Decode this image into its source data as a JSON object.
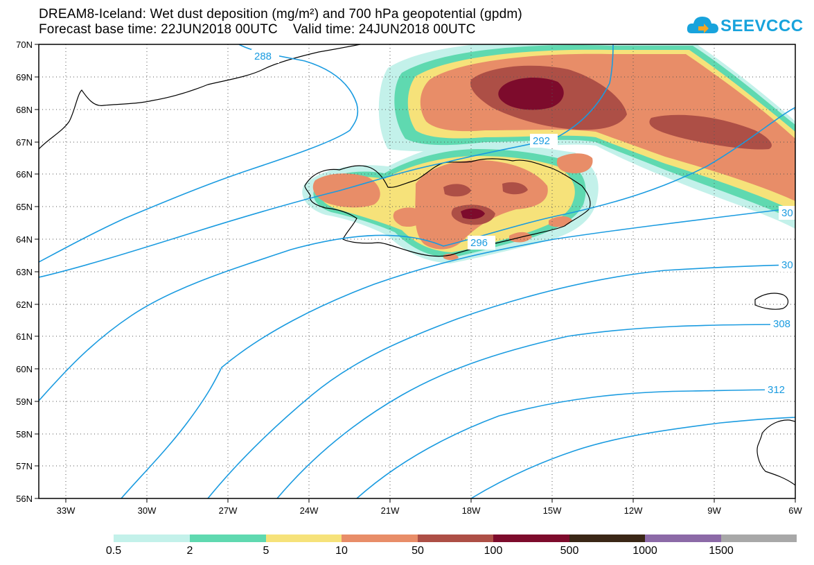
{
  "title": {
    "line1": "DREAM8-Iceland: Wet dust deposition (mg/m²) and 700 hPa geopotential (gpdm)",
    "line2": "Forecast base time: 22JUN2018 00UTC    Valid time: 24JUN2018 00UTC"
  },
  "logo": {
    "text": "SEEVCCC",
    "icon": "cloud-icon",
    "color": "#18a3dc"
  },
  "map": {
    "lon_range": [
      -34,
      -6
    ],
    "lat_range": [
      56,
      70
    ],
    "lat_labels": [
      "70N",
      "69N",
      "68N",
      "67N",
      "66N",
      "65N",
      "64N",
      "63N",
      "62N",
      "61N",
      "60N",
      "59N",
      "58N",
      "57N",
      "56N"
    ],
    "lon_labels": [
      "33W",
      "30W",
      "27W",
      "24W",
      "21W",
      "18W",
      "15W",
      "12W",
      "9W",
      "6W"
    ],
    "grid": "dotted",
    "contour_color": "#1a9be0",
    "contour_labels": [
      "288",
      "292",
      "296",
      "30",
      "30",
      "308",
      "312"
    ]
  },
  "legend": {
    "labels": [
      "0.5",
      "2",
      "5",
      "10",
      "50",
      "100",
      "500",
      "1000",
      "1500"
    ],
    "colors": [
      "#c3f1ea",
      "#5fd9b0",
      "#f6e27a",
      "#e88d68",
      "#ad4f46",
      "#7d0b2c",
      "#3a2716",
      "#8c6aa7",
      "#a8a8a8"
    ]
  }
}
